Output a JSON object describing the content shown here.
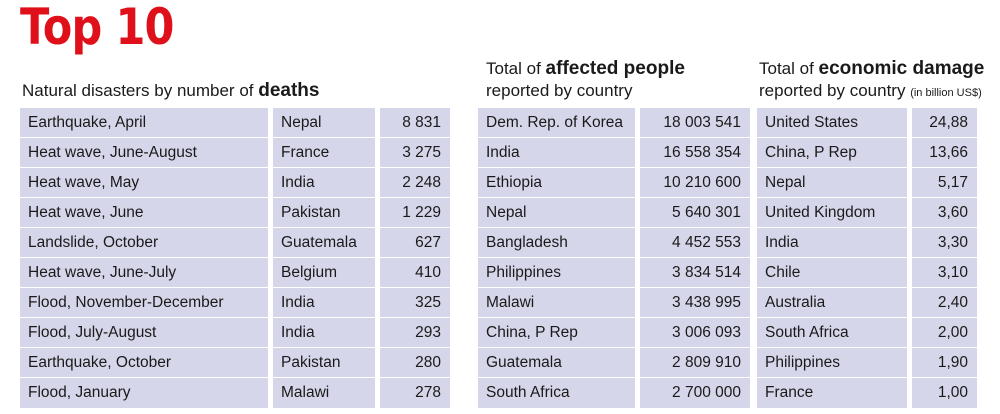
{
  "title": "Top 10",
  "deaths": {
    "heading_prefix": "Natural disasters by number of ",
    "heading_bold": "deaths",
    "rows": [
      {
        "event": "Earthquake, April",
        "country": "Nepal",
        "value": "8 831"
      },
      {
        "event": "Heat wave, June-August",
        "country": "France",
        "value": "3 275"
      },
      {
        "event": "Heat wave, May",
        "country": "India",
        "value": "2 248"
      },
      {
        "event": "Heat wave, June",
        "country": "Pakistan",
        "value": "1 229"
      },
      {
        "event": "Landslide, October",
        "country": "Guatemala",
        "value": "627"
      },
      {
        "event": "Heat wave, June-July",
        "country": "Belgium",
        "value": "410"
      },
      {
        "event": "Flood, November-December",
        "country": "India",
        "value": "325"
      },
      {
        "event": "Flood, July-August",
        "country": "India",
        "value": "293"
      },
      {
        "event": "Earthquake, October",
        "country": "Pakistan",
        "value": "280"
      },
      {
        "event": "Flood, January",
        "country": "Malawi",
        "value": "278"
      }
    ]
  },
  "affected": {
    "heading_prefix": "Total of ",
    "heading_bold": "affected people",
    "heading_line2": "reported by country",
    "rows": [
      {
        "country": "Dem. Rep. of Korea",
        "value": "18 003 541"
      },
      {
        "country": "India",
        "value": "16 558 354"
      },
      {
        "country": "Ethiopia",
        "value": "10 210 600"
      },
      {
        "country": "Nepal",
        "value": "5 640 301"
      },
      {
        "country": "Bangladesh",
        "value": "4 452 553"
      },
      {
        "country": "Philippines",
        "value": "3 834 514"
      },
      {
        "country": "Malawi",
        "value": "3 438 995"
      },
      {
        "country": "China, P Rep",
        "value": "3 006 093"
      },
      {
        "country": "Guatemala",
        "value": "2 809 910"
      },
      {
        "country": "South Africa",
        "value": "2 700 000"
      }
    ]
  },
  "damage": {
    "heading_prefix": "Total of ",
    "heading_bold": "economic damage",
    "heading_line2": "reported by country ",
    "heading_unit": "(in billion US$)",
    "rows": [
      {
        "country": "United States",
        "value": "24,88"
      },
      {
        "country": "China, P Rep",
        "value": "13,66"
      },
      {
        "country": "Nepal",
        "value": "5,17"
      },
      {
        "country": "United Kingdom",
        "value": "3,60"
      },
      {
        "country": "India",
        "value": "3,30"
      },
      {
        "country": "Chile",
        "value": "3,10"
      },
      {
        "country": "Australia",
        "value": "2,40"
      },
      {
        "country": "South Africa",
        "value": "2,00"
      },
      {
        "country": "Philippines",
        "value": "1,90"
      },
      {
        "country": "France",
        "value": "1,00"
      }
    ]
  },
  "colors": {
    "title": "#e0101a",
    "table_fill": "#d6d6ea"
  }
}
